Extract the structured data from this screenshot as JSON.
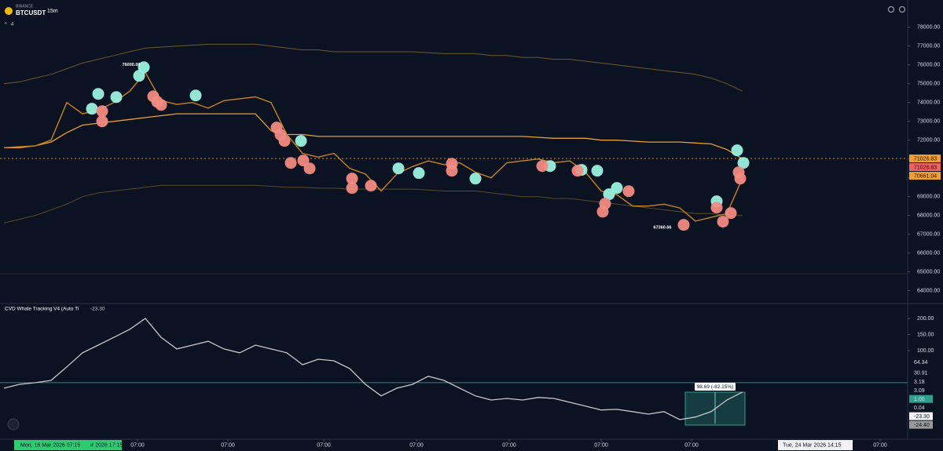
{
  "header": {
    "exchange": "BINANCE",
    "symbol": "BTCUSDT",
    "interval": "15m",
    "layers": "4"
  },
  "chart_data": [
    {
      "type": "line",
      "xlim": [
        -0.25,
        57.5
      ],
      "ylim": [
        63400,
        79450
      ],
      "yticks": [
        {
          "value": 64000,
          "label": "64000.00"
        },
        {
          "value": 65000,
          "label": "65000.00"
        },
        {
          "value": 66000,
          "label": "66000.00"
        },
        {
          "value": 67000,
          "label": "67000.00"
        },
        {
          "value": 68000,
          "label": "68000.00"
        },
        {
          "value": 69000,
          "label": "69000.00"
        },
        {
          "value": 70000,
          "label": "70000.00"
        },
        {
          "value": 71000,
          "label": "71000.00"
        },
        {
          "value": 72000,
          "label": "72000.00"
        },
        {
          "value": 73000,
          "label": "73000.00"
        },
        {
          "value": 74000,
          "label": "74000.00"
        },
        {
          "value": 75000,
          "label": "75000.00"
        },
        {
          "value": 76000,
          "label": "76000.00"
        },
        {
          "value": 77000,
          "label": "77000.00"
        },
        {
          "value": 78000,
          "label": "78000.00"
        }
      ],
      "xticks": [
        {
          "value": 8.5,
          "label": "07:00"
        },
        {
          "value": 14.25,
          "label": "07:00"
        },
        {
          "value": 20.35,
          "label": "07:00"
        },
        {
          "value": 26.25,
          "label": "07:00"
        },
        {
          "value": 32.15,
          "label": "07:00"
        },
        {
          "value": 38,
          "label": "07:00"
        },
        {
          "value": 43.75,
          "label": "07:00"
        },
        {
          "value": 55.75,
          "label": "07:00"
        }
      ],
      "series": [
        {
          "type": "line",
          "color": "#6b5a2a",
          "width": 1,
          "values": [
            75000,
            75100,
            75300,
            75500,
            75800,
            76100,
            76300,
            76500,
            76700,
            76900,
            76950,
            77000,
            77050,
            77100,
            77100,
            77100,
            77100,
            77000,
            76900,
            76800,
            76800,
            76700,
            76700,
            76700,
            76700,
            76700,
            76700,
            76650,
            76600,
            76600,
            76600,
            76500,
            76500,
            76400,
            76400,
            76300,
            76300,
            76200,
            76100,
            76000,
            75900,
            75800,
            75700,
            75600,
            75500,
            75300,
            75000,
            74600
          ]
        },
        {
          "type": "line",
          "color": "#e8a030",
          "width": 1.3,
          "values": [
            71600,
            71600,
            71700,
            71900,
            72400,
            72800,
            72900,
            73000,
            73100,
            73200,
            73300,
            73400,
            73400,
            73400,
            73400,
            73400,
            73400,
            72500,
            72300,
            72300,
            72200,
            72200,
            72200,
            72200,
            72200,
            72200,
            72200,
            72200,
            72200,
            72200,
            72200,
            72200,
            72200,
            72200,
            72150,
            72100,
            72100,
            72100,
            72000,
            72000,
            71950,
            71900,
            71900,
            71900,
            71850,
            71800,
            71500,
            71000
          ]
        },
        {
          "type": "line",
          "color": "#5a4c26",
          "width": 1,
          "values": [
            67600,
            67800,
            68000,
            68300,
            68600,
            69000,
            69200,
            69300,
            69400,
            69500,
            69600,
            69600,
            69600,
            69600,
            69600,
            69600,
            69600,
            69550,
            69500,
            69500,
            69450,
            69450,
            69400,
            69400,
            69400,
            69400,
            69400,
            69350,
            69300,
            69300,
            69300,
            69200,
            69100,
            69000,
            69000,
            68900,
            68900,
            68800,
            68700,
            68600,
            68500,
            68400,
            68300,
            68200,
            68100,
            68100,
            68000,
            68000
          ]
        },
        {
          "type": "line",
          "color": "#c8841c",
          "width": 1.4,
          "values": [
            71600,
            71650,
            71700,
            72000,
            74000,
            73400,
            73600,
            74000,
            74600,
            75600,
            74100,
            73900,
            74000,
            73700,
            74100,
            74200,
            74300,
            74000,
            72300,
            71300,
            71100,
            71300,
            70500,
            70200,
            69300,
            70200,
            70600,
            70900,
            70700,
            70800,
            70300,
            70000,
            70800,
            70900,
            71000,
            70800,
            70900,
            70300,
            69300,
            69100,
            68500,
            68500,
            68600,
            68400,
            67700,
            67900,
            68100,
            70000
          ]
        },
        {
          "type": "scatter",
          "color": "#9af2df",
          "x": [
            5.6,
            6,
            7.15,
            8.6,
            8.9,
            12.2,
            18.9,
            25.1,
            26.4,
            30,
            34.75,
            36.75,
            37.75,
            38.5,
            39,
            45.35,
            46.65,
            47.05
          ],
          "values": [
            73670,
            74460,
            74290,
            75420,
            75875,
            74375,
            71960,
            70500,
            70250,
            69960,
            70625,
            70420,
            70375,
            69125,
            69460,
            68750,
            71460,
            70790
          ]
        },
        {
          "type": "scatter",
          "color": "#f28b82",
          "x": [
            6.25,
            6.25,
            9.5,
            9.75,
            10,
            17.35,
            17.6,
            17.85,
            18.25,
            19.05,
            19.45,
            22.15,
            22.15,
            23.35,
            28.5,
            28.5,
            34.25,
            36.5,
            38.25,
            38.1,
            39.75,
            43.25,
            45.35,
            45.75,
            46.25,
            46.75,
            46.85
          ],
          "values": [
            73540,
            73000,
            74330,
            74040,
            73875,
            72670,
            72290,
            71960,
            70790,
            70920,
            70500,
            69960,
            69460,
            69580,
            70750,
            70375,
            70625,
            70375,
            68625,
            68200,
            69290,
            67500,
            68420,
            67670,
            68125,
            70290,
            69960
          ]
        }
      ],
      "annotations": [
        {
          "text": "76000.00",
          "x": 8.1,
          "y": 76000
        },
        {
          "text": "67360.66",
          "x": 41.9,
          "y": 67360.66
        }
      ],
      "price_tags": [
        {
          "value": 71026.83,
          "label": "71026.83",
          "color": "#f0a030"
        },
        {
          "value": 71026.83,
          "label": "71026.83",
          "color": "#f06060"
        },
        {
          "value": 70661.04,
          "label": "70661.04",
          "color": "#f0a030"
        }
      ],
      "current_price": 71026.83
    },
    {
      "type": "line",
      "title": "CVD Whale Tracking V4 (Auto Ti",
      "last_value": "-23.30",
      "xlim": [
        -0.25,
        57.5
      ],
      "ylim": [
        -176,
        239
      ],
      "yticks": [
        {
          "value": 100,
          "label": "100.00"
        },
        {
          "value": 150,
          "label": "150.00"
        },
        {
          "value": 200,
          "label": "200.00"
        }
      ],
      "series": [
        {
          "type": "line",
          "color": "#c8c8c8",
          "width": 1.3,
          "values": [
            -17,
            -5,
            0,
            7,
            49,
            93,
            117,
            141,
            166,
            200,
            141,
            105,
            117,
            129,
            105,
            93,
            117,
            105,
            93,
            56,
            73,
            68,
            44,
            -5,
            -41,
            -17,
            -5,
            20,
            7,
            -17,
            -41,
            -54,
            -49,
            -54,
            -46,
            -49,
            -61,
            -73,
            -85,
            -83,
            -90,
            -98,
            -90,
            -115,
            -107,
            -90,
            -54,
            -29
          ]
        }
      ],
      "measure_label": "98.69 (-82.15%)",
      "value_tags": [
        {
          "value": 64.34,
          "label": "64.34"
        },
        {
          "value": 30.91,
          "label": "30.91"
        },
        {
          "value": 3.18,
          "label": "3.18"
        },
        {
          "value": 3.09,
          "label": "3.09"
        },
        {
          "value": 1.0,
          "label": "1.00"
        },
        {
          "value": 0.04,
          "label": "0.04"
        },
        {
          "value": -23.3,
          "label": "-23.30"
        },
        {
          "value": -24.4,
          "label": "-24.40"
        }
      ]
    }
  ],
  "footer": {
    "start_date": "Mon, 16 Mar 2026 07:15",
    "range_end": "ır 2026 17:15",
    "cursor_date": "Tue, 24 Mar 2026 14:15"
  }
}
